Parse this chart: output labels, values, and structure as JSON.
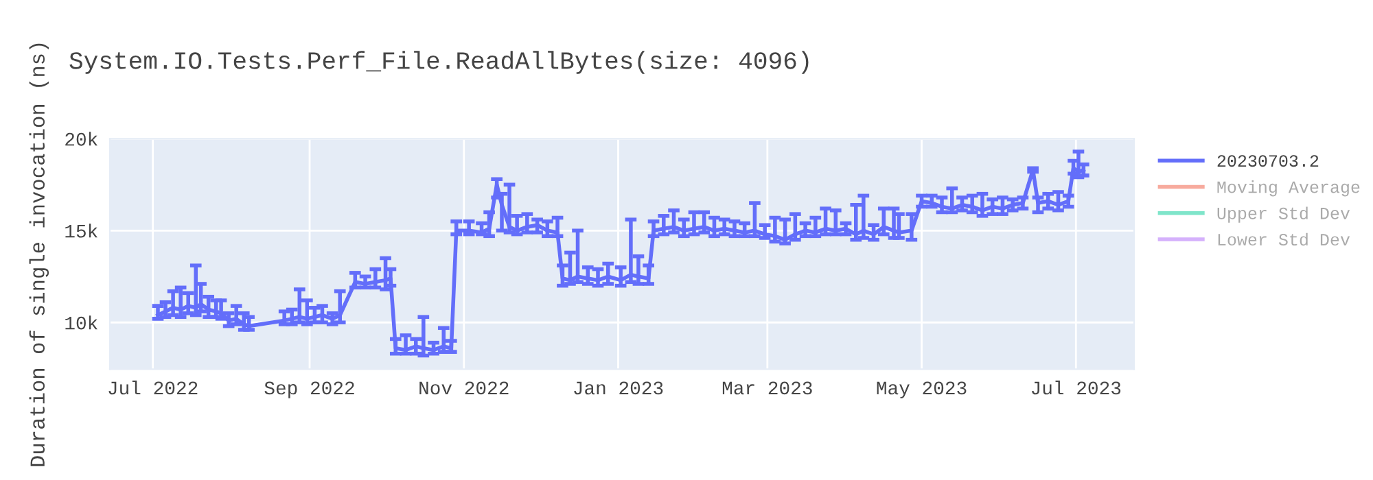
{
  "chart_data": {
    "type": "line",
    "title": "System.IO.Tests.Perf_File.ReadAllBytes(size: 4096)",
    "ylabel": "Duration of single invocation (ns)",
    "xlim": [
      "2022-06-14",
      "2023-07-24"
    ],
    "ylim": [
      7460,
      20000
    ],
    "xticks": [
      {
        "value": "2022-07-01",
        "label": "Jul 2022"
      },
      {
        "value": "2022-09-01",
        "label": "Sep 2022"
      },
      {
        "value": "2022-11-01",
        "label": "Nov 2022"
      },
      {
        "value": "2023-01-01",
        "label": "Jan 2023"
      },
      {
        "value": "2023-03-01",
        "label": "Mar 2023"
      },
      {
        "value": "2023-05-01",
        "label": "May 2023"
      },
      {
        "value": "2023-07-01",
        "label": "Jul 2023"
      }
    ],
    "yticks": [
      {
        "value": 10000,
        "label": "10k"
      },
      {
        "value": 15000,
        "label": "15k"
      },
      {
        "value": 20000,
        "label": "20k"
      }
    ],
    "grid": true,
    "legend": "right",
    "marker": "none",
    "line_style": "solid",
    "series": [
      {
        "name": "20230703.2",
        "color": "#636efa",
        "x": [
          "2022-07-03",
          "2022-07-06",
          "2022-07-09",
          "2022-07-12",
          "2022-07-15",
          "2022-07-18",
          "2022-07-20",
          "2022-07-23",
          "2022-07-26",
          "2022-07-28",
          "2022-07-31",
          "2022-08-03",
          "2022-08-06",
          "2022-08-08",
          "2022-08-22",
          "2022-08-25",
          "2022-08-28",
          "2022-08-31",
          "2022-09-03",
          "2022-09-06",
          "2022-09-10",
          "2022-09-13",
          "2022-09-19",
          "2022-09-23",
          "2022-09-27",
          "2022-10-01",
          "2022-10-03",
          "2022-10-05",
          "2022-10-09",
          "2022-10-13",
          "2022-10-16",
          "2022-10-20",
          "2022-10-24",
          "2022-10-27",
          "2022-10-29",
          "2022-11-03",
          "2022-11-08",
          "2022-11-11",
          "2022-11-14",
          "2022-11-16",
          "2022-11-19",
          "2022-11-22",
          "2022-11-26",
          "2022-11-30",
          "2022-12-04",
          "2022-12-08",
          "2022-12-10",
          "2022-12-13",
          "2022-12-16",
          "2022-12-20",
          "2022-12-24",
          "2022-12-28",
          "2023-01-02",
          "2023-01-06",
          "2023-01-09",
          "2023-01-13",
          "2023-01-15",
          "2023-01-19",
          "2023-01-23",
          "2023-01-27",
          "2023-01-31",
          "2023-02-04",
          "2023-02-08",
          "2023-02-12",
          "2023-02-16",
          "2023-02-20",
          "2023-02-24",
          "2023-02-28",
          "2023-03-04",
          "2023-03-08",
          "2023-03-12",
          "2023-03-16",
          "2023-03-20",
          "2023-03-24",
          "2023-03-28",
          "2023-04-01",
          "2023-04-05",
          "2023-04-08",
          "2023-04-12",
          "2023-04-16",
          "2023-04-20",
          "2023-04-22",
          "2023-04-27",
          "2023-05-01",
          "2023-05-05",
          "2023-05-09",
          "2023-05-13",
          "2023-05-17",
          "2023-05-21",
          "2023-05-25",
          "2023-05-29",
          "2023-06-02",
          "2023-06-06",
          "2023-06-10",
          "2023-06-14",
          "2023-06-16",
          "2023-06-20",
          "2023-06-24",
          "2023-06-28",
          "2023-06-30",
          "2023-07-02",
          "2023-07-04"
        ],
        "values": [
          10400,
          10600,
          10800,
          10700,
          10900,
          10800,
          11000,
          10700,
          10600,
          10500,
          10100,
          10200,
          9900,
          9800,
          10100,
          10200,
          10300,
          10200,
          10300,
          10400,
          10200,
          10400,
          12200,
          12100,
          12200,
          12300,
          12400,
          8600,
          8500,
          8700,
          8600,
          8500,
          8700,
          8600,
          15000,
          15000,
          14900,
          15100,
          17500,
          16400,
          15200,
          15000,
          15200,
          15300,
          15000,
          14900,
          12400,
          12300,
          12500,
          12400,
          12300,
          12500,
          12300,
          12600,
          12500,
          12400,
          15000,
          15100,
          15200,
          15000,
          15100,
          15200,
          15000,
          15100,
          15000,
          14900,
          15000,
          14800,
          14700,
          14500,
          14800,
          15000,
          14900,
          15100,
          15000,
          15100,
          14800,
          15000,
          14800,
          15200,
          15000,
          14900,
          15000,
          16600,
          16500,
          16300,
          16200,
          16400,
          16300,
          16100,
          16300,
          16200,
          16400,
          16500,
          18300,
          16500,
          16600,
          16400,
          16600,
          18400,
          18200,
          18300
        ],
        "errors": [
          [
            10200,
            10900
          ],
          [
            10300,
            11100
          ],
          [
            10400,
            11700
          ],
          [
            10300,
            11900
          ],
          [
            10500,
            11600
          ],
          [
            10400,
            13100
          ],
          [
            10600,
            12100
          ],
          [
            10300,
            11400
          ],
          [
            10300,
            11200
          ],
          [
            10200,
            11200
          ],
          [
            9800,
            10500
          ],
          [
            9900,
            10900
          ],
          [
            9600,
            10500
          ],
          [
            9600,
            10300
          ],
          [
            9900,
            10600
          ],
          [
            9900,
            10700
          ],
          [
            10000,
            11800
          ],
          [
            9900,
            11200
          ],
          [
            10000,
            10800
          ],
          [
            10000,
            10900
          ],
          [
            9900,
            10500
          ],
          [
            10000,
            11700
          ],
          [
            11900,
            12700
          ],
          [
            11900,
            12500
          ],
          [
            11900,
            12900
          ],
          [
            11800,
            13500
          ],
          [
            12000,
            12900
          ],
          [
            8300,
            9100
          ],
          [
            8300,
            9300
          ],
          [
            8300,
            9100
          ],
          [
            8200,
            10300
          ],
          [
            8300,
            8900
          ],
          [
            8400,
            9700
          ],
          [
            8400,
            9000
          ],
          [
            14800,
            15500
          ],
          [
            14800,
            15500
          ],
          [
            14800,
            15400
          ],
          [
            14700,
            16000
          ],
          [
            16800,
            17800
          ],
          [
            15000,
            17000
          ],
          [
            14900,
            17500
          ],
          [
            14800,
            15800
          ],
          [
            14900,
            15900
          ],
          [
            14900,
            15600
          ],
          [
            14700,
            15500
          ],
          [
            14700,
            15700
          ],
          [
            12000,
            13100
          ],
          [
            12100,
            13800
          ],
          [
            12200,
            15000
          ],
          [
            12100,
            13000
          ],
          [
            12000,
            12900
          ],
          [
            12100,
            13200
          ],
          [
            12000,
            13000
          ],
          [
            12200,
            15600
          ],
          [
            12100,
            13600
          ],
          [
            12100,
            13100
          ],
          [
            14700,
            15500
          ],
          [
            14800,
            15800
          ],
          [
            14900,
            16100
          ],
          [
            14700,
            15600
          ],
          [
            14800,
            16000
          ],
          [
            14900,
            16000
          ],
          [
            14700,
            15700
          ],
          [
            14800,
            15600
          ],
          [
            14700,
            15500
          ],
          [
            14700,
            15400
          ],
          [
            14700,
            16500
          ],
          [
            14600,
            15300
          ],
          [
            14400,
            15700
          ],
          [
            14300,
            15600
          ],
          [
            14500,
            15900
          ],
          [
            14700,
            15400
          ],
          [
            14700,
            15700
          ],
          [
            14800,
            16200
          ],
          [
            14800,
            16100
          ],
          [
            14800,
            15400
          ],
          [
            14500,
            16400
          ],
          [
            14600,
            16900
          ],
          [
            14500,
            15300
          ],
          [
            14800,
            16200
          ],
          [
            14600,
            16200
          ],
          [
            14600,
            15900
          ],
          [
            14500,
            15900
          ],
          [
            16300,
            16900
          ],
          [
            16300,
            16900
          ],
          [
            16000,
            16800
          ],
          [
            16000,
            17300
          ],
          [
            16100,
            16800
          ],
          [
            16000,
            16900
          ],
          [
            15800,
            17000
          ],
          [
            15900,
            16700
          ],
          [
            15900,
            16800
          ],
          [
            16100,
            16700
          ],
          [
            16200,
            16800
          ],
          [
            18200,
            18400
          ],
          [
            16000,
            16800
          ],
          [
            16200,
            17000
          ],
          [
            16100,
            17100
          ],
          [
            16300,
            16900
          ],
          [
            18100,
            18800
          ],
          [
            17900,
            19300
          ],
          [
            18000,
            18600
          ]
        ]
      },
      {
        "name": "Moving Average",
        "color": "#ef553b"
      },
      {
        "name": "Upper Std Dev",
        "color": "#00cc96"
      },
      {
        "name": "Lower Std Dev",
        "color": "#ab63fa"
      }
    ]
  }
}
